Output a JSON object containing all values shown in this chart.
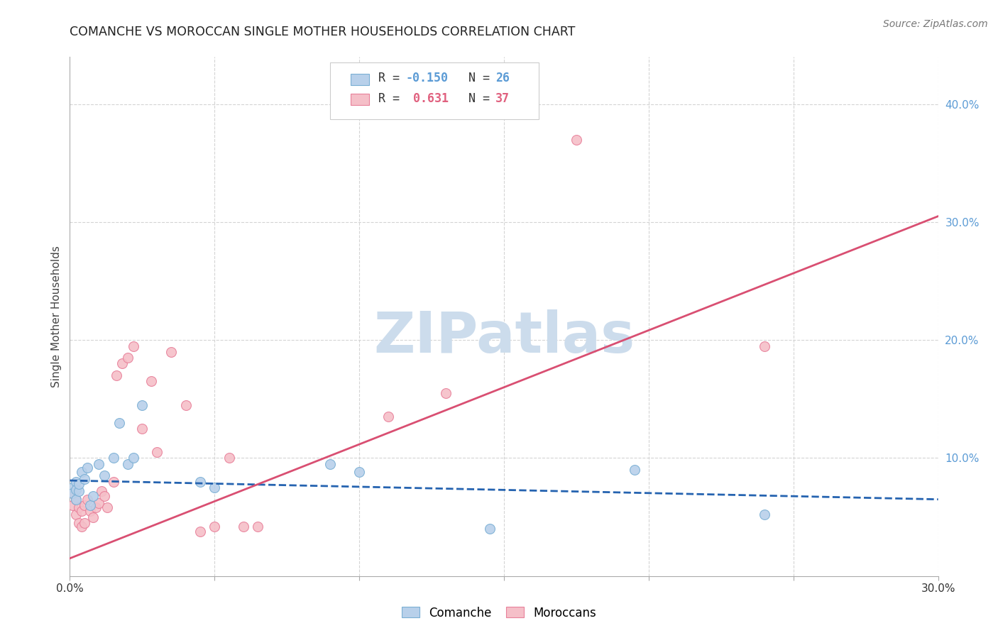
{
  "title": "COMANCHE VS MOROCCAN SINGLE MOTHER HOUSEHOLDS CORRELATION CHART",
  "source": "Source: ZipAtlas.com",
  "ylabel": "Single Mother Households",
  "xlim": [
    0.0,
    0.3
  ],
  "ylim": [
    0.0,
    0.44
  ],
  "x_ticks": [
    0.0,
    0.05,
    0.1,
    0.15,
    0.2,
    0.25,
    0.3
  ],
  "y_ticks_right": [
    0.0,
    0.1,
    0.2,
    0.3,
    0.4
  ],
  "comanche_color": "#b8d0ea",
  "comanche_edge_color": "#7aafd4",
  "moroccan_color": "#f5bfc8",
  "moroccan_edge_color": "#e8809a",
  "comanche_line_color": "#2563b0",
  "moroccan_line_color": "#d94f72",
  "watermark": "ZIPatlas",
  "watermark_color": "#ccdcec",
  "grid_color": "#d0d0d0",
  "comanche_x": [
    0.001,
    0.001,
    0.002,
    0.002,
    0.002,
    0.003,
    0.003,
    0.004,
    0.005,
    0.006,
    0.007,
    0.008,
    0.01,
    0.012,
    0.015,
    0.017,
    0.02,
    0.022,
    0.025,
    0.045,
    0.05,
    0.09,
    0.1,
    0.145,
    0.195,
    0.24
  ],
  "comanche_y": [
    0.075,
    0.07,
    0.065,
    0.08,
    0.073,
    0.072,
    0.078,
    0.088,
    0.082,
    0.092,
    0.06,
    0.068,
    0.095,
    0.085,
    0.1,
    0.13,
    0.095,
    0.1,
    0.145,
    0.08,
    0.075,
    0.095,
    0.088,
    0.04,
    0.09,
    0.052
  ],
  "moroccan_x": [
    0.001,
    0.001,
    0.002,
    0.002,
    0.003,
    0.003,
    0.004,
    0.004,
    0.005,
    0.005,
    0.006,
    0.007,
    0.008,
    0.009,
    0.01,
    0.011,
    0.012,
    0.013,
    0.015,
    0.016,
    0.018,
    0.02,
    0.022,
    0.025,
    0.028,
    0.03,
    0.035,
    0.04,
    0.045,
    0.05,
    0.055,
    0.06,
    0.065,
    0.11,
    0.13,
    0.175,
    0.24
  ],
  "moroccan_y": [
    0.07,
    0.06,
    0.065,
    0.052,
    0.058,
    0.045,
    0.042,
    0.055,
    0.06,
    0.045,
    0.065,
    0.055,
    0.05,
    0.058,
    0.062,
    0.072,
    0.068,
    0.058,
    0.08,
    0.17,
    0.18,
    0.185,
    0.195,
    0.125,
    0.165,
    0.105,
    0.19,
    0.145,
    0.038,
    0.042,
    0.1,
    0.042,
    0.042,
    0.135,
    0.155,
    0.37,
    0.195
  ],
  "marker_size": 100,
  "comanche_trend": [
    0.081,
    0.065
  ],
  "moroccan_trend": [
    0.015,
    0.305
  ]
}
